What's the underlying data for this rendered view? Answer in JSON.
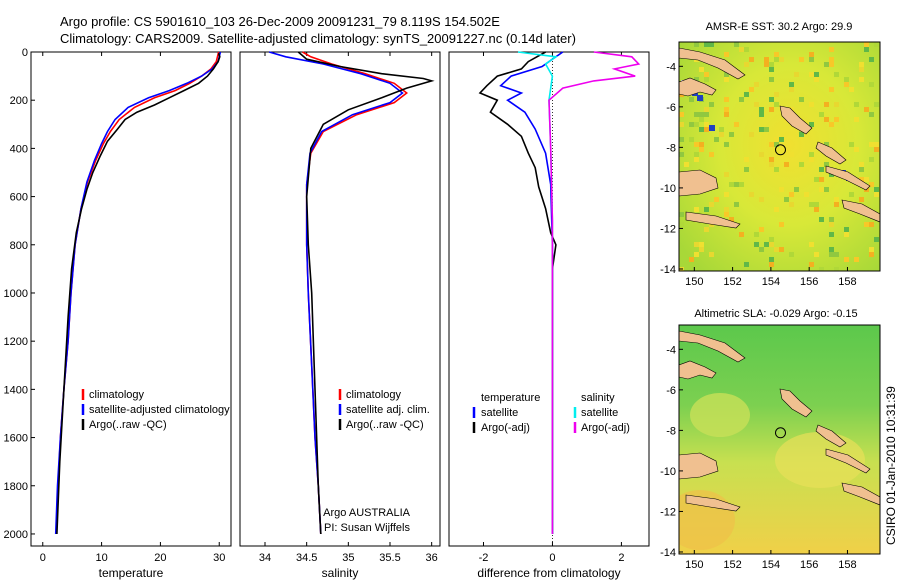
{
  "header": {
    "line1": "Argo profile: CS 5901610_103 26-Dec-2009 20091231_79 8.119S 154.502E",
    "line2": "Climatology: CARS2009. Satellite-adjusted climatology: synTS_20091227.nc (0.14d later)"
  },
  "colors": {
    "clim": "#ff0000",
    "sat": "#0000ff",
    "argo": "#000000",
    "sal_sat": "#00eeee",
    "sal_argo": "#ee00ee",
    "land": "#f0c090"
  },
  "chart_data": [
    {
      "type": "line",
      "name": "temperature-panel",
      "xlabel": "temperature",
      "xlim": [
        -2,
        32
      ],
      "ylim": [
        0,
        2050
      ],
      "xticks": [
        0,
        10,
        20,
        30
      ],
      "yticks": [
        0,
        200,
        400,
        600,
        800,
        1000,
        1200,
        1400,
        1600,
        1800,
        2000
      ],
      "legend": [
        "climatology",
        "satellite-adjusted climatology",
        "Argo(..raw -QC)"
      ],
      "series": [
        {
          "name": "climatology",
          "color": "clim",
          "x": [
            29.9,
            29.5,
            28.6,
            27,
            25,
            22.5,
            19,
            15.6,
            13,
            11.5,
            10.3,
            9,
            7.6,
            6.5,
            5.5,
            4.8,
            4.3,
            3.6,
            3,
            2.6,
            2.3
          ],
          "y": [
            0,
            40,
            70,
            100,
            130,
            160,
            190,
            230,
            280,
            330,
            380,
            450,
            540,
            650,
            800,
            1000,
            1200,
            1400,
            1600,
            1800,
            2000
          ]
        },
        {
          "name": "satellite-adjusted climatology",
          "color": "sat",
          "x": [
            30.2,
            29.8,
            28.8,
            27,
            24.5,
            21.5,
            18,
            14.5,
            12.3,
            11,
            10,
            8.8,
            7.5,
            6.5,
            5.5,
            4.8,
            4.3,
            3.6,
            3,
            2.5,
            2.2
          ],
          "y": [
            0,
            40,
            70,
            100,
            130,
            160,
            190,
            230,
            280,
            330,
            380,
            450,
            540,
            650,
            800,
            1000,
            1200,
            1400,
            1600,
            1800,
            2000
          ]
        },
        {
          "name": "Argo",
          "color": "argo",
          "x": [
            29.9,
            30.1,
            29.8,
            29,
            28,
            26.5,
            24,
            21.5,
            19,
            16,
            14,
            12.7,
            11,
            9.8,
            8.5,
            7.5,
            6.6,
            5.7,
            4.9,
            4.3,
            3.6,
            2.9,
            2.4
          ],
          "y": [
            5,
            20,
            40,
            70,
            100,
            130,
            160,
            190,
            220,
            250,
            280,
            320,
            370,
            430,
            500,
            570,
            650,
            750,
            900,
            1100,
            1400,
            1700,
            2000
          ]
        }
      ]
    },
    {
      "type": "line",
      "name": "salinity-panel",
      "xlabel": "salinity",
      "xlim": [
        33.7,
        36.1
      ],
      "ylim": [
        0,
        2050
      ],
      "xticks": [
        34,
        34.5,
        35,
        35.5,
        36
      ],
      "yticks": [],
      "legend": [
        "climatology",
        "satellite adj. clim.",
        "Argo(..raw -QC)"
      ],
      "annotation": [
        "Argo AUSTRALIA",
        "PI: Susan Wijffels"
      ],
      "series": [
        {
          "name": "climatology",
          "color": "clim",
          "x": [
            34.45,
            34.55,
            34.8,
            35.2,
            35.55,
            35.7,
            35.55,
            35.1,
            34.7,
            34.55,
            34.5,
            34.5,
            34.52,
            34.56,
            34.6,
            34.64,
            34.67
          ],
          "y": [
            0,
            20,
            50,
            90,
            130,
            170,
            210,
            260,
            330,
            420,
            550,
            800,
            1000,
            1300,
            1600,
            1800,
            2000
          ]
        },
        {
          "name": "satellite adj. clim.",
          "color": "sat",
          "x": [
            34.05,
            34.25,
            34.7,
            35.15,
            35.5,
            35.65,
            35.5,
            35.05,
            34.68,
            34.54,
            34.5,
            34.5,
            34.52,
            34.56,
            34.6,
            34.64,
            34.67
          ],
          "y": [
            0,
            20,
            50,
            90,
            130,
            170,
            210,
            260,
            330,
            420,
            550,
            800,
            1000,
            1300,
            1600,
            1800,
            2000
          ]
        },
        {
          "name": "Argo",
          "color": "argo",
          "x": [
            34.4,
            34.5,
            34.9,
            35.4,
            35.9,
            36,
            35.7,
            35.4,
            35.0,
            34.7,
            34.55,
            34.5,
            34.52,
            34.56,
            34.6,
            34.64,
            34.67
          ],
          "y": [
            0,
            30,
            60,
            90,
            110,
            120,
            150,
            190,
            240,
            300,
            400,
            600,
            800,
            1000,
            1400,
            1800,
            2000
          ]
        }
      ]
    },
    {
      "type": "line",
      "name": "difference-panel",
      "xlabel": "difference from climatology",
      "xlim": [
        -3,
        2.8
      ],
      "ylim": [
        0,
        2050
      ],
      "xticks": [
        -2,
        0,
        2
      ],
      "yticks": [],
      "legend_headers": [
        "temperature",
        "salinity"
      ],
      "legend_left": [
        "satellite",
        "Argo(-adj)"
      ],
      "legend_right": [
        "satellite",
        "Argo(-adj)"
      ],
      "series": [
        {
          "name": "temperature satellite",
          "color": "sat",
          "x": [
            0.3,
            0,
            -0.3,
            -1.2,
            -1.5,
            -0.9,
            -1.3,
            -0.8,
            -0.5,
            -0.2,
            -0.05,
            0,
            0
          ],
          "y": [
            0,
            30,
            60,
            100,
            140,
            170,
            200,
            250,
            320,
            420,
            550,
            800,
            2000
          ]
        },
        {
          "name": "temperature Argo(-adj)",
          "color": "argo",
          "x": [
            -0.2,
            -0.7,
            -0.9,
            -1.6,
            -1.9,
            -2.1,
            -1.6,
            -1.8,
            -1.3,
            -0.9,
            -0.7,
            -0.5,
            -0.4,
            -0.2,
            -0.05,
            0.1,
            0,
            0
          ],
          "y": [
            0,
            40,
            70,
            100,
            140,
            170,
            200,
            250,
            300,
            350,
            420,
            480,
            560,
            650,
            750,
            800,
            900,
            2000
          ]
        },
        {
          "name": "salinity satellite",
          "color": "sal_sat",
          "x": [
            -1,
            0.1,
            -0.2,
            0,
            -0.1,
            -0.05,
            0,
            0
          ],
          "y": [
            0,
            20,
            50,
            100,
            200,
            400,
            700,
            2000
          ]
        },
        {
          "name": "salinity Argo(-adj)",
          "color": "sal_argo",
          "x": [
            1.2,
            2.3,
            2.5,
            1.8,
            2.4,
            1.2,
            0.3,
            -0.1,
            -0.05,
            0,
            0
          ],
          "y": [
            0,
            20,
            50,
            70,
            100,
            120,
            150,
            200,
            400,
            700,
            2000
          ]
        }
      ]
    },
    {
      "type": "heatmap",
      "name": "sst-map",
      "title_label": "AMSR-E SST:",
      "title_value": "30.2",
      "argo_label": "Argo:",
      "argo_value": "29.9",
      "xlim": [
        149.2,
        159.7
      ],
      "ylim": [
        -14.1,
        -2.8
      ],
      "xticks": [
        150,
        152,
        154,
        156,
        158
      ],
      "yticks": [
        -4,
        -6,
        -8,
        -10,
        -12,
        -14
      ],
      "marker": [
        154.502,
        -8.119
      ]
    },
    {
      "type": "heatmap",
      "name": "sla-map",
      "title_label": "Altimetric SLA:",
      "title_value": "-0.029",
      "argo_label": "Argo:",
      "argo_value": "-0.15",
      "xlim": [
        149.2,
        159.7
      ],
      "ylim": [
        -14.1,
        -2.8
      ],
      "xticks": [
        150,
        152,
        154,
        156,
        158
      ],
      "yticks": [
        -4,
        -6,
        -8,
        -10,
        -12,
        -14
      ],
      "marker": [
        154.502,
        -8.119
      ]
    }
  ],
  "footer": {
    "stamp": "CSIRO 01-Jan-2010 10:31:39"
  }
}
